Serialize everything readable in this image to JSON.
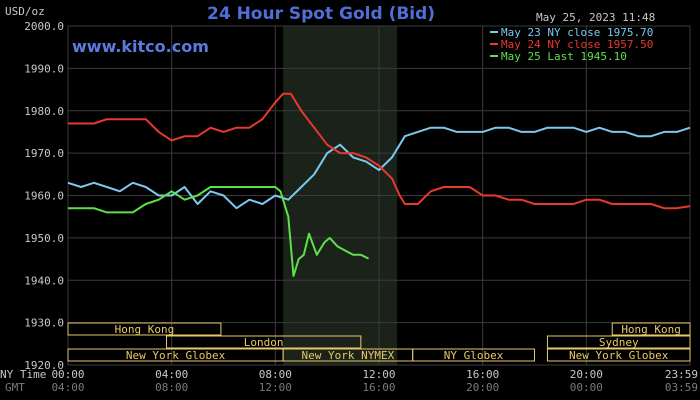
{
  "chart_data": {
    "type": "line",
    "title": "24 Hour Spot Gold (Bid)",
    "watermark": "www.kitco.com",
    "ylabel": "USD/oz",
    "timestamp": "May 25, 2023 11:48",
    "ylim": [
      1920,
      2000
    ],
    "yticks": [
      "2000.0",
      "1990.0",
      "1980.0",
      "1970.0",
      "1960.0",
      "1950.0",
      "1940.0",
      "1930.0",
      "1920.0"
    ],
    "xlim": [
      0,
      24
    ],
    "xrow_ny_label": "NY Time",
    "xrow_gmt_label": "GMT",
    "xticks_ny": [
      "00:00",
      "04:00",
      "08:00",
      "12:00",
      "16:00",
      "20:00",
      "23:59"
    ],
    "xticks_gmt": [
      "04:00",
      "08:00",
      "12:00",
      "16:00",
      "20:00",
      "00:00",
      "03:59"
    ],
    "highlight_range": [
      8.3,
      12.7
    ],
    "grid": true,
    "legend_position": "top-right",
    "colors": {
      "May 23": "#7ec8f0",
      "May 24": "#e8392c",
      "May 25": "#5ee04a",
      "grid": "#3a3a3a",
      "session_border": "#e8c96a",
      "highlight": "#1a221a"
    },
    "sessions": [
      {
        "label": "Hong Kong",
        "row": 0,
        "start": 0,
        "end": 5.9
      },
      {
        "label": "London",
        "row": 1,
        "start": 3.8,
        "end": 11.3
      },
      {
        "label": "New York Globex",
        "row": 2,
        "start": 0,
        "end": 8.3
      },
      {
        "label": "New York NYMEX",
        "row": 2,
        "start": 8.3,
        "end": 13.3
      },
      {
        "label": "NY Globex",
        "row": 2,
        "start": 13.3,
        "end": 18.0
      },
      {
        "label": "Sydney",
        "row": 1,
        "start": 18.5,
        "end": 24
      },
      {
        "label": "Hong Kong",
        "row": 0,
        "start": 21.0,
        "end": 24
      },
      {
        "label": "New York Globex",
        "row": 2,
        "start": 18.5,
        "end": 24
      }
    ],
    "series": [
      {
        "name": "May 23 NY close 1975.70",
        "x": [
          0,
          0.5,
          1,
          1.5,
          2,
          2.5,
          3,
          3.5,
          4,
          4.5,
          5,
          5.5,
          6,
          6.5,
          7,
          7.5,
          8,
          8.5,
          9,
          9.5,
          10,
          10.5,
          11,
          11.5,
          12,
          12.5,
          13,
          13.5,
          14,
          14.5,
          15,
          15.5,
          16,
          16.5,
          17,
          17.5,
          18,
          18.5,
          19,
          19.5,
          20,
          20.5,
          21,
          21.5,
          22,
          22.5,
          23,
          23.5,
          24
        ],
        "values": [
          1963,
          1962,
          1963,
          1962,
          1961,
          1963,
          1962,
          1960,
          1960,
          1962,
          1958,
          1961,
          1960,
          1957,
          1959,
          1958,
          1960,
          1959,
          1962,
          1965,
          1970,
          1972,
          1969,
          1968,
          1966,
          1969,
          1974,
          1975,
          1976,
          1976,
          1975,
          1975,
          1975,
          1976,
          1976,
          1975,
          1975,
          1976,
          1976,
          1976,
          1975,
          1976,
          1975,
          1975,
          1974,
          1974,
          1975,
          1975,
          1976
        ]
      },
      {
        "name": "May 24 NY close 1957.50",
        "x": [
          0,
          0.5,
          1,
          1.5,
          2,
          2.5,
          3,
          3.5,
          4,
          4.5,
          5,
          5.5,
          6,
          6.5,
          7,
          7.5,
          8,
          8.3,
          8.6,
          9,
          9.5,
          10,
          10.5,
          11,
          11.5,
          12,
          12.5,
          12.8,
          13,
          13.5,
          14,
          14.5,
          15,
          15.5,
          16,
          16.5,
          17,
          17.5,
          18,
          18.5,
          19,
          19.5,
          20,
          20.5,
          21,
          21.5,
          22,
          22.5,
          23,
          23.5,
          24
        ],
        "values": [
          1977,
          1977,
          1977,
          1978,
          1978,
          1978,
          1978,
          1975,
          1973,
          1974,
          1974,
          1976,
          1975,
          1976,
          1976,
          1978,
          1982,
          1984,
          1984,
          1980,
          1976,
          1972,
          1970,
          1970,
          1969,
          1967,
          1964,
          1960,
          1958,
          1958,
          1961,
          1962,
          1962,
          1962,
          1960,
          1960,
          1959,
          1959,
          1958,
          1958,
          1958,
          1958,
          1959,
          1959,
          1958,
          1958,
          1958,
          1958,
          1957,
          1957,
          1957.5
        ]
      },
      {
        "name": "May 25 Last 1945.10",
        "x": [
          0,
          0.5,
          1,
          1.5,
          2,
          2.5,
          3,
          3.5,
          4,
          4.5,
          5,
          5.5,
          6,
          6.5,
          7,
          7.5,
          8,
          8.2,
          8.5,
          8.7,
          8.9,
          9.1,
          9.3,
          9.6,
          9.9,
          10.1,
          10.4,
          10.7,
          11,
          11.3,
          11.6
        ],
        "values": [
          1957,
          1957,
          1957,
          1956,
          1956,
          1956,
          1958,
          1959,
          1961,
          1959,
          1960,
          1962,
          1962,
          1962,
          1962,
          1962,
          1962,
          1961,
          1955,
          1941,
          1945,
          1946,
          1951,
          1946,
          1949,
          1950,
          1948,
          1947,
          1946,
          1946,
          1945.1
        ]
      }
    ]
  }
}
